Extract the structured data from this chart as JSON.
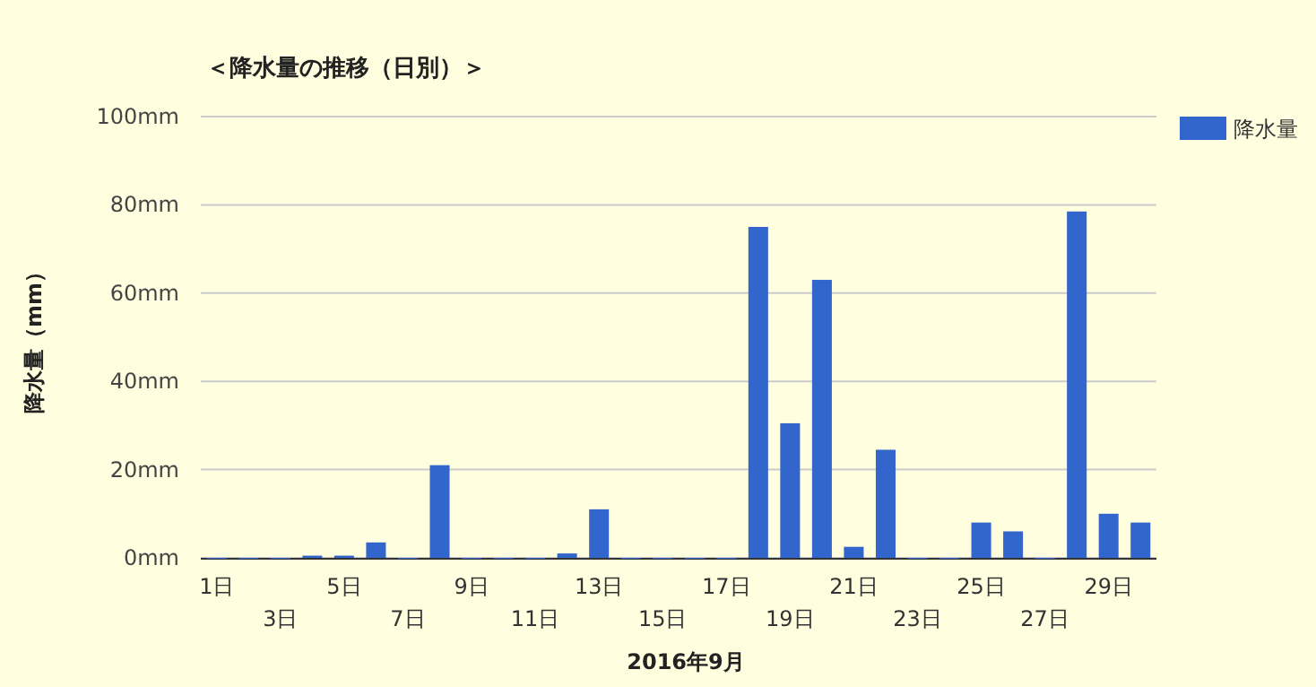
{
  "chart_data": {
    "type": "bar",
    "title": "＜降水量の推移（日別）＞",
    "xlabel": "2016年9月",
    "ylabel": "降水量（mm）",
    "categories": [
      "1日",
      null,
      "3日",
      null,
      "5日",
      null,
      "7日",
      null,
      "9日",
      null,
      "11日",
      null,
      "13日",
      null,
      "15日",
      null,
      "17日",
      null,
      "19日",
      null,
      "21日",
      null,
      "23日",
      null,
      "25日",
      null,
      "27日",
      null,
      "29日",
      null
    ],
    "series": [
      {
        "name": "降水量",
        "color": "#3366cc",
        "values": [
          0,
          0,
          0,
          0.5,
          0.5,
          3.5,
          0,
          21,
          0,
          0,
          0,
          1,
          11,
          0,
          0,
          0,
          0,
          75,
          30.5,
          63,
          2.5,
          24.5,
          0,
          0,
          8,
          6,
          0,
          78.5,
          10,
          8
        ]
      }
    ],
    "ylim": [
      0,
      100
    ],
    "yticks": [
      {
        "value": 0,
        "label": "0mm"
      },
      {
        "value": 20,
        "label": "20mm"
      },
      {
        "value": 40,
        "label": "40mm"
      },
      {
        "value": 60,
        "label": "60mm"
      },
      {
        "value": 80,
        "label": "80mm"
      },
      {
        "value": 100,
        "label": "100mm"
      }
    ],
    "grid": "y",
    "legend": "right"
  }
}
